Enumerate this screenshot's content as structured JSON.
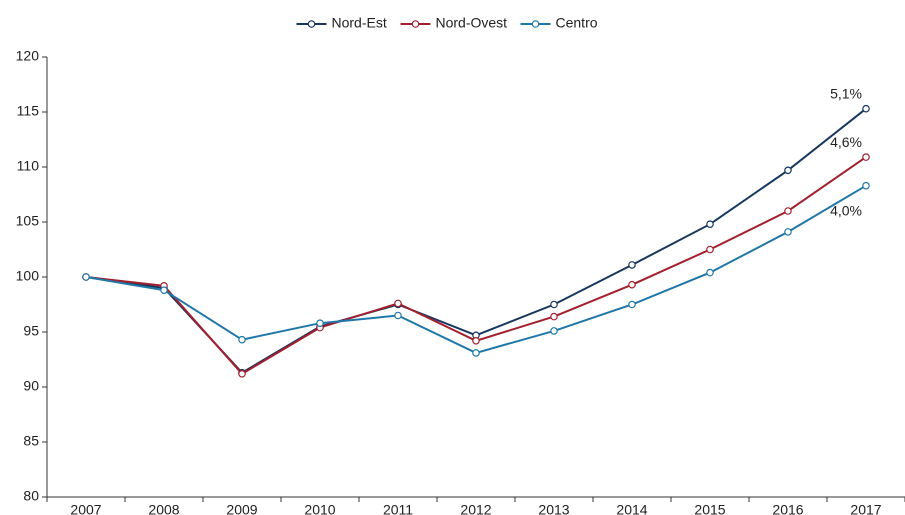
{
  "chart_data": {
    "type": "line",
    "categories": [
      "2007",
      "2008",
      "2009",
      "2010",
      "2011",
      "2012",
      "2013",
      "2014",
      "2015",
      "2016",
      "2017"
    ],
    "series": [
      {
        "name": "Nord-Est",
        "color": "#17375e",
        "values": [
          100,
          99.0,
          91.3,
          95.5,
          97.5,
          94.7,
          97.5,
          101.1,
          104.8,
          109.7,
          115.3
        ],
        "end_label": "5,1%"
      },
      {
        "name": "Nord-Ovest",
        "color": "#a31f2e",
        "values": [
          100,
          99.2,
          91.2,
          95.4,
          97.6,
          94.2,
          96.4,
          99.3,
          102.5,
          106.0,
          110.9
        ],
        "end_label": "4,6%"
      },
      {
        "name": "Centro",
        "color": "#1f77a8",
        "values": [
          100,
          98.8,
          94.3,
          95.8,
          96.5,
          93.1,
          95.1,
          97.5,
          100.4,
          104.1,
          108.3
        ],
        "end_label": "4,0%"
      }
    ],
    "ylim": [
      80,
      120
    ],
    "yticks": [
      80,
      85,
      90,
      95,
      100,
      105,
      110,
      115,
      120
    ],
    "grid": false,
    "legend": "top"
  }
}
